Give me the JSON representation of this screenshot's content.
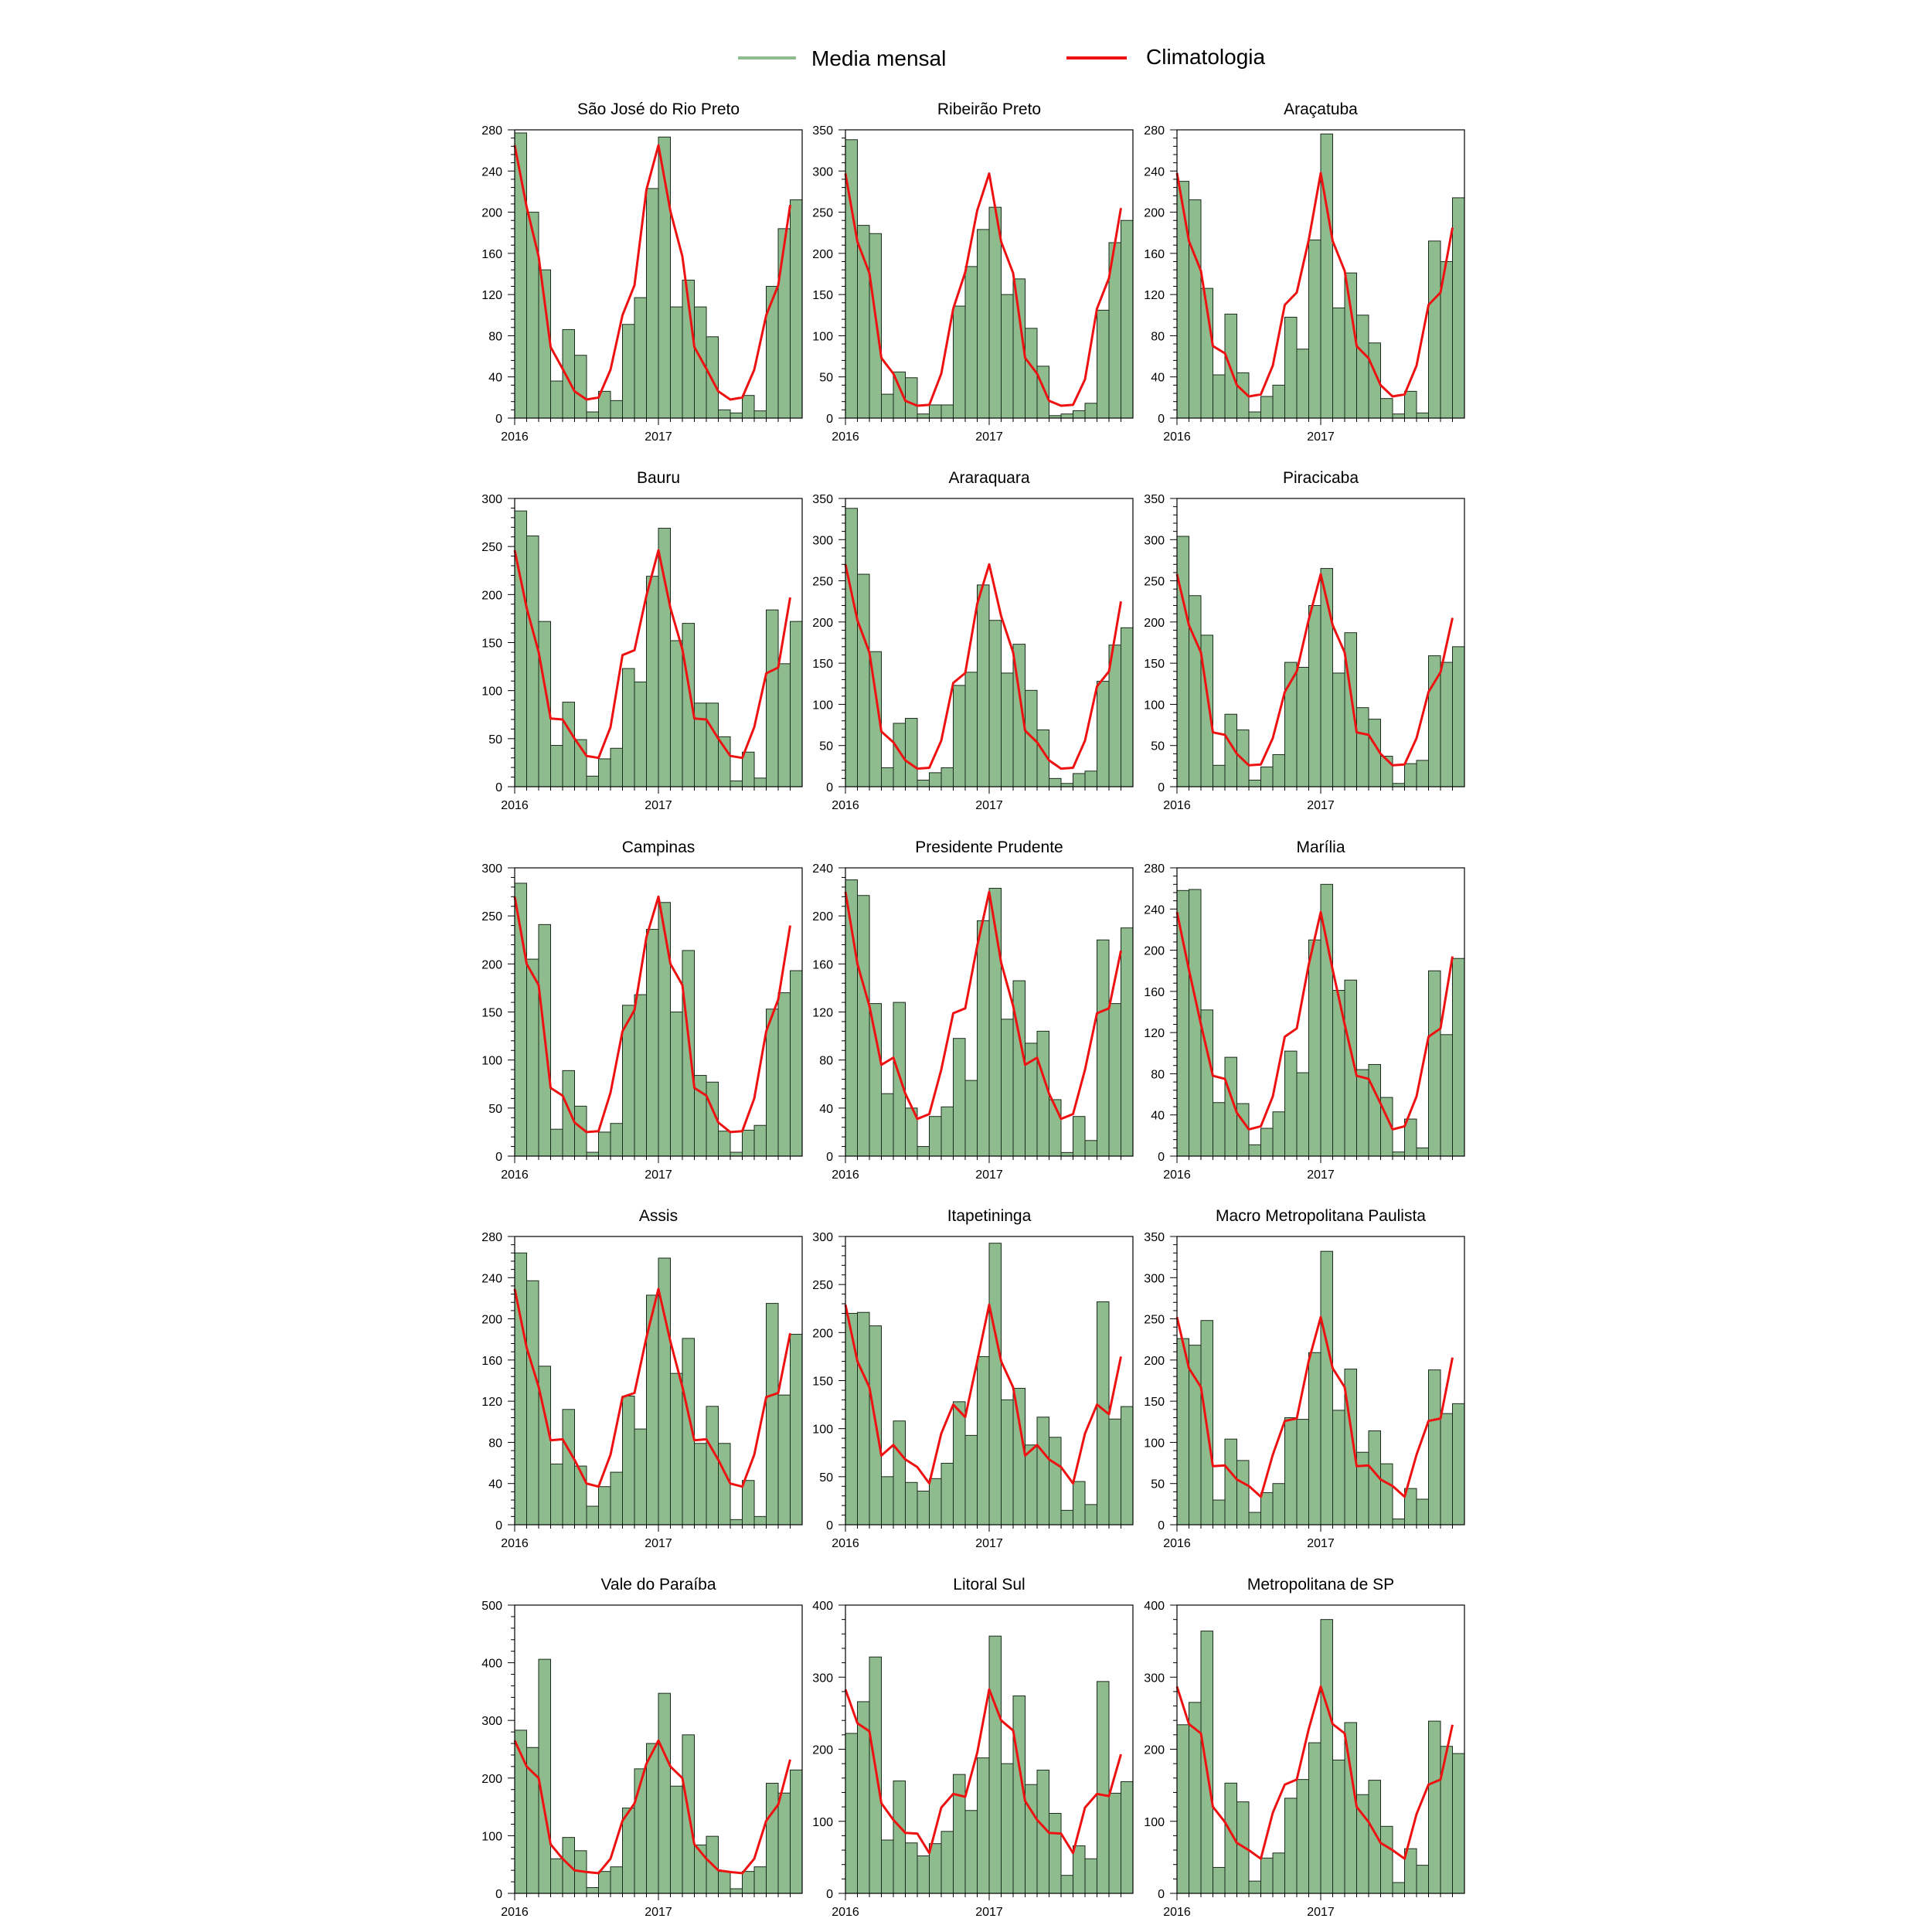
{
  "legend": {
    "bar_label": "Media mensal",
    "line_label": "Climatologia",
    "bar_color": "#8fbc8f",
    "bar_edge": "#1a2a1a",
    "line_color": "#ee1111"
  },
  "x_ticks": [
    "2016",
    "2017"
  ],
  "chart_data": [
    {
      "type": "bar",
      "title": "São José do Rio Preto",
      "ylim": [
        0,
        280
      ],
      "yticks": [
        0,
        40,
        80,
        120,
        160,
        200,
        240,
        280
      ],
      "series": [
        {
          "name": "Media mensal",
          "values": [
            277,
            200,
            144,
            36,
            86,
            61,
            6,
            26,
            17,
            91,
            117,
            223,
            273,
            108,
            134,
            108,
            79,
            8,
            5,
            22,
            7,
            128,
            184,
            212
          ]
        },
        {
          "name": "Climatologia",
          "values": [
            265,
            205,
            157,
            69,
            48,
            26,
            18,
            20,
            47,
            100,
            129,
            222,
            265,
            201,
            157,
            69,
            48,
            26,
            18,
            20,
            47,
            100,
            129,
            207
          ]
        }
      ]
    },
    {
      "type": "bar",
      "title": "Ribeirão Preto",
      "ylim": [
        0,
        350
      ],
      "yticks": [
        0,
        50,
        100,
        150,
        200,
        250,
        300,
        350
      ],
      "series": [
        {
          "name": "Media mensal",
          "values": [
            338,
            234,
            224,
            29,
            56,
            49,
            5,
            16,
            16,
            136,
            184,
            229,
            256,
            150,
            169,
            109,
            63,
            3,
            5,
            9,
            18,
            131,
            213,
            240
          ]
        },
        {
          "name": "Climatologia",
          "values": [
            297,
            214,
            176,
            73,
            54,
            21,
            15,
            16,
            54,
            133,
            177,
            252,
            297,
            214,
            176,
            73,
            54,
            21,
            15,
            16,
            47,
            133,
            170,
            255
          ]
        }
      ]
    },
    {
      "type": "bar",
      "title": "Araçatuba",
      "ylim": [
        0,
        280
      ],
      "yticks": [
        0,
        40,
        80,
        120,
        160,
        200,
        240,
        280
      ],
      "series": [
        {
          "name": "Media mensal",
          "values": [
            230,
            212,
            126,
            42,
            101,
            44,
            6,
            21,
            32,
            98,
            67,
            173,
            276,
            107,
            141,
            100,
            73,
            19,
            4,
            26,
            5,
            172,
            152,
            214
          ]
        },
        {
          "name": "Climatologia",
          "values": [
            238,
            172,
            143,
            70,
            63,
            32,
            21,
            23,
            51,
            110,
            122,
            173,
            238,
            172,
            143,
            70,
            58,
            32,
            21,
            23,
            51,
            110,
            122,
            185
          ]
        }
      ]
    },
    {
      "type": "bar",
      "title": "Bauru",
      "ylim": [
        0,
        300
      ],
      "yticks": [
        0,
        50,
        100,
        150,
        200,
        250,
        300
      ],
      "series": [
        {
          "name": "Media mensal",
          "values": [
            287,
            261,
            172,
            43,
            88,
            49,
            11,
            29,
            40,
            123,
            109,
            219,
            269,
            152,
            170,
            87,
            87,
            52,
            6,
            36,
            9,
            184,
            128,
            172
          ]
        },
        {
          "name": "Climatologia",
          "values": [
            246,
            186,
            140,
            71,
            70,
            50,
            32,
            30,
            62,
            137,
            142,
            199,
            246,
            186,
            143,
            71,
            70,
            50,
            32,
            30,
            62,
            118,
            124,
            197
          ]
        }
      ]
    },
    {
      "type": "bar",
      "title": "Araraquara",
      "ylim": [
        0,
        350
      ],
      "yticks": [
        0,
        50,
        100,
        150,
        200,
        250,
        300,
        350
      ],
      "series": [
        {
          "name": "Media mensal",
          "values": [
            338,
            258,
            164,
            23,
            77,
            83,
            8,
            17,
            23,
            123,
            139,
            245,
            202,
            138,
            173,
            117,
            69,
            10,
            4,
            16,
            19,
            128,
            172,
            193
          ]
        },
        {
          "name": "Climatologia",
          "values": [
            270,
            202,
            163,
            67,
            54,
            32,
            22,
            23,
            56,
            126,
            138,
            222,
            270,
            207,
            163,
            68,
            54,
            32,
            22,
            23,
            56,
            122,
            140,
            225
          ]
        }
      ]
    },
    {
      "type": "bar",
      "title": "Piracicaba",
      "ylim": [
        0,
        350
      ],
      "yticks": [
        0,
        50,
        100,
        150,
        200,
        250,
        300,
        350
      ],
      "series": [
        {
          "name": "Media mensal",
          "values": [
            304,
            232,
            184,
            26,
            88,
            69,
            8,
            24,
            39,
            151,
            145,
            220,
            265,
            138,
            187,
            96,
            82,
            37,
            4,
            28,
            32,
            159,
            151,
            170
          ]
        },
        {
          "name": "Climatologia",
          "values": [
            258,
            196,
            163,
            66,
            63,
            40,
            26,
            27,
            59,
            115,
            140,
            203,
            258,
            196,
            163,
            66,
            63,
            40,
            26,
            27,
            59,
            115,
            139,
            205
          ]
        }
      ]
    },
    {
      "type": "bar",
      "title": "Campinas",
      "ylim": [
        0,
        300
      ],
      "yticks": [
        0,
        50,
        100,
        150,
        200,
        250,
        300
      ],
      "series": [
        {
          "name": "Media mensal",
          "values": [
            284,
            205,
            241,
            28,
            89,
            52,
            4,
            25,
            34,
            157,
            168,
            236,
            264,
            150,
            214,
            84,
            77,
            26,
            4,
            27,
            32,
            153,
            170,
            193
          ]
        },
        {
          "name": "Climatologia",
          "values": [
            270,
            200,
            178,
            71,
            63,
            35,
            25,
            26,
            66,
            130,
            152,
            228,
            270,
            200,
            178,
            71,
            63,
            35,
            25,
            26,
            60,
            130,
            163,
            240
          ]
        }
      ]
    },
    {
      "type": "bar",
      "title": "Presidente Prudente",
      "ylim": [
        0,
        240
      ],
      "yticks": [
        0,
        40,
        80,
        120,
        160,
        200,
        240
      ],
      "series": [
        {
          "name": "Media mensal",
          "values": [
            230,
            217,
            127,
            52,
            128,
            40,
            8,
            33,
            41,
            98,
            63,
            196,
            223,
            114,
            146,
            94,
            104,
            47,
            3,
            33,
            13,
            180,
            127,
            190
          ]
        },
        {
          "name": "Climatologia",
          "values": [
            220,
            160,
            125,
            76,
            82,
            52,
            31,
            35,
            72,
            119,
            123,
            175,
            220,
            161,
            125,
            76,
            82,
            52,
            31,
            35,
            72,
            119,
            123,
            171
          ]
        }
      ]
    },
    {
      "type": "bar",
      "title": "Marília",
      "ylim": [
        0,
        280
      ],
      "yticks": [
        0,
        40,
        80,
        120,
        160,
        200,
        240,
        280
      ],
      "series": [
        {
          "name": "Media mensal",
          "values": [
            258,
            259,
            142,
            52,
            96,
            51,
            11,
            27,
            43,
            102,
            81,
            210,
            264,
            161,
            171,
            84,
            89,
            57,
            4,
            36,
            8,
            180,
            118,
            192
          ]
        },
        {
          "name": "Climatologia",
          "values": [
            237,
            181,
            128,
            78,
            75,
            42,
            26,
            29,
            58,
            116,
            124,
            186,
            237,
            181,
            128,
            78,
            75,
            51,
            26,
            29,
            58,
            116,
            124,
            194
          ]
        }
      ]
    },
    {
      "type": "bar",
      "title": "Assis",
      "ylim": [
        0,
        280
      ],
      "yticks": [
        0,
        40,
        80,
        120,
        160,
        200,
        240,
        280
      ],
      "series": [
        {
          "name": "Media mensal",
          "values": [
            264,
            237,
            154,
            59,
            112,
            57,
            18,
            37,
            51,
            125,
            93,
            223,
            259,
            147,
            181,
            79,
            115,
            79,
            5,
            43,
            8,
            215,
            126,
            185
          ]
        },
        {
          "name": "Climatologia",
          "values": [
            229,
            172,
            134,
            82,
            83,
            63,
            40,
            37,
            68,
            124,
            128,
            182,
            229,
            178,
            134,
            82,
            83,
            63,
            40,
            37,
            68,
            124,
            128,
            186
          ]
        }
      ]
    },
    {
      "type": "bar",
      "title": "Itapetininga",
      "ylim": [
        0,
        300
      ],
      "yticks": [
        0,
        50,
        100,
        150,
        200,
        250,
        300
      ],
      "series": [
        {
          "name": "Media mensal",
          "values": [
            220,
            221,
            207,
            50,
            108,
            44,
            35,
            48,
            64,
            128,
            93,
            175,
            293,
            130,
            142,
            83,
            112,
            91,
            15,
            45,
            21,
            232,
            110,
            123
          ]
        },
        {
          "name": "Climatologia",
          "values": [
            229,
            170,
            143,
            72,
            83,
            68,
            60,
            43,
            95,
            125,
            112,
            170,
            229,
            170,
            143,
            72,
            83,
            68,
            60,
            43,
            95,
            125,
            115,
            175
          ]
        }
      ]
    },
    {
      "type": "bar",
      "title": "Macro Metropolitana Paulista",
      "ylim": [
        0,
        350
      ],
      "yticks": [
        0,
        50,
        100,
        150,
        200,
        250,
        300,
        350
      ],
      "series": [
        {
          "name": "Media mensal",
          "values": [
            226,
            218,
            248,
            30,
            104,
            78,
            15,
            39,
            50,
            130,
            128,
            209,
            332,
            139,
            189,
            88,
            114,
            74,
            7,
            44,
            31,
            188,
            135,
            147
          ]
        },
        {
          "name": "Climatologia",
          "values": [
            252,
            190,
            167,
            71,
            72,
            55,
            47,
            34,
            85,
            126,
            129,
            199,
            252,
            190,
            167,
            71,
            72,
            55,
            47,
            34,
            85,
            126,
            129,
            203
          ]
        }
      ]
    },
    {
      "type": "bar",
      "title": "Vale do Paraíba",
      "ylim": [
        0,
        500
      ],
      "yticks": [
        0,
        100,
        200,
        300,
        400,
        500
      ],
      "series": [
        {
          "name": "Media mensal",
          "values": [
            283,
            253,
            406,
            60,
            97,
            74,
            10,
            38,
            46,
            148,
            216,
            260,
            347,
            186,
            275,
            84,
            99,
            38,
            8,
            38,
            46,
            191,
            174,
            214
          ]
        },
        {
          "name": "Climatologia",
          "values": [
            265,
            220,
            200,
            85,
            60,
            40,
            37,
            35,
            60,
            126,
            156,
            225,
            265,
            220,
            200,
            85,
            60,
            40,
            37,
            35,
            60,
            126,
            154,
            232
          ]
        }
      ]
    },
    {
      "type": "bar",
      "title": "Litoral Sul",
      "ylim": [
        0,
        400
      ],
      "yticks": [
        0,
        100,
        200,
        300,
        400
      ],
      "series": [
        {
          "name": "Media mensal",
          "values": [
            222,
            266,
            328,
            74,
            156,
            70,
            52,
            69,
            86,
            165,
            115,
            188,
            357,
            180,
            274,
            151,
            171,
            111,
            25,
            66,
            48,
            294,
            139,
            155
          ]
        },
        {
          "name": "Climatologia",
          "values": [
            283,
            236,
            225,
            125,
            102,
            84,
            83,
            56,
            119,
            138,
            134,
            195,
            283,
            240,
            226,
            128,
            102,
            84,
            83,
            56,
            119,
            138,
            135,
            193
          ]
        }
      ]
    },
    {
      "type": "bar",
      "title": "Metropolitana de SP",
      "ylim": [
        0,
        400
      ],
      "yticks": [
        0,
        100,
        200,
        300,
        400
      ],
      "series": [
        {
          "name": "Media mensal",
          "values": [
            234,
            265,
            364,
            36,
            153,
            127,
            17,
            49,
            56,
            132,
            158,
            209,
            380,
            185,
            237,
            137,
            157,
            93,
            15,
            62,
            39,
            239,
            204,
            194
          ]
        },
        {
          "name": "Climatologia",
          "values": [
            287,
            235,
            222,
            120,
            99,
            70,
            60,
            48,
            112,
            151,
            158,
            228,
            287,
            235,
            222,
            120,
            99,
            70,
            60,
            48,
            110,
            151,
            158,
            234
          ]
        }
      ]
    }
  ]
}
